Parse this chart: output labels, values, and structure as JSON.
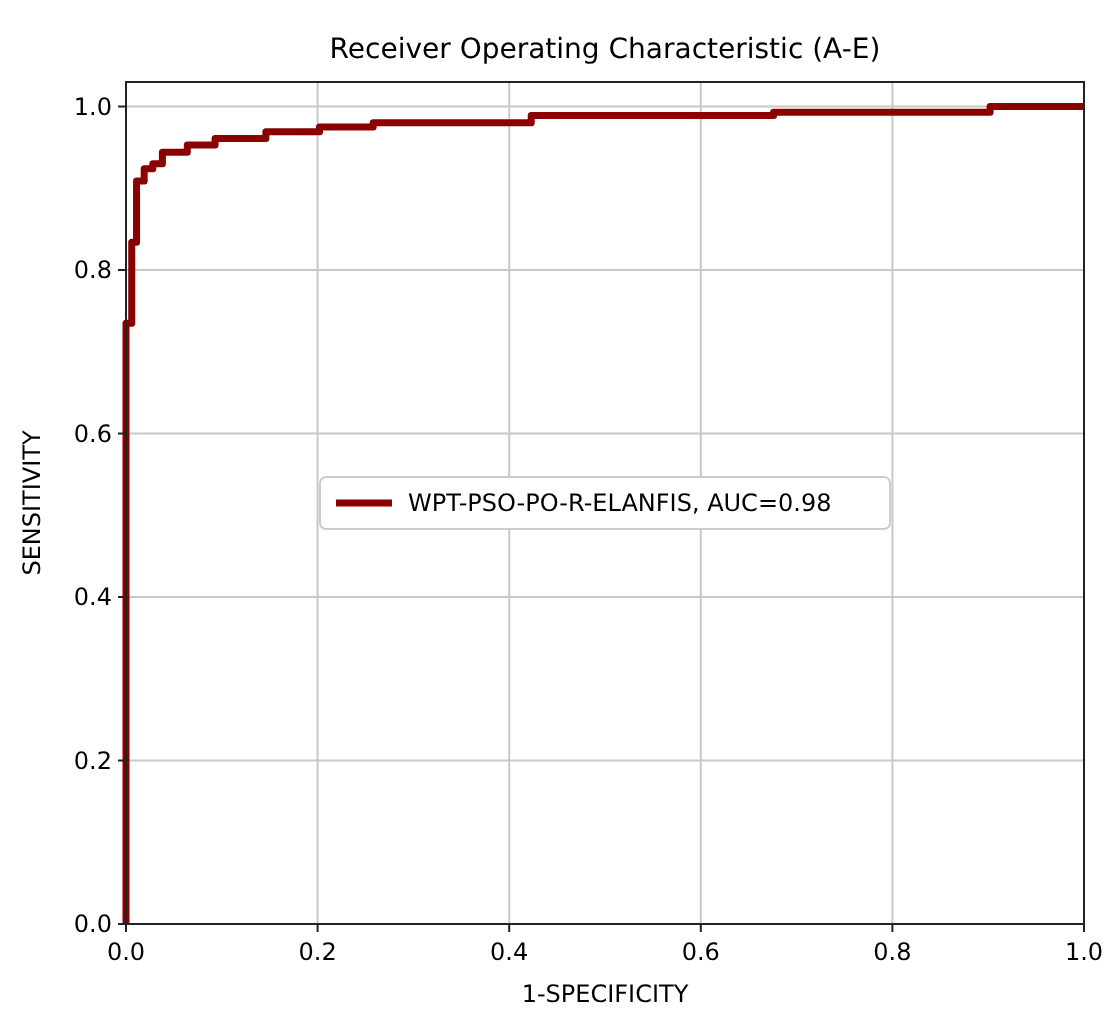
{
  "chart_data": {
    "type": "step",
    "title": "Receiver Operating Characteristic (A-E)",
    "xlabel": "1-SPECIFICITY",
    "ylabel": "SENSITIVITY",
    "xlim": [
      0,
      1
    ],
    "ylim": [
      0,
      1.03
    ],
    "xticks": [
      {
        "value": 0,
        "label": "0.0"
      },
      0.2,
      0.4,
      0.6,
      0.8,
      {
        "value": 1,
        "label": "1.0"
      }
    ],
    "yticks": [
      {
        "value": 0,
        "label": "0.0"
      },
      0.2,
      0.4,
      0.6,
      0.8,
      {
        "value": 1,
        "label": "1.0"
      }
    ],
    "grid": true,
    "legend": "center",
    "marker": "none",
    "line_style": "solid",
    "series": [
      {
        "name": "WPT-PSO-PO-R-ELANFIS, AUC=0.98",
        "color": "#8b0000",
        "x": [
          0,
          0,
          0.006,
          0.011,
          0.019,
          0.028,
          0.038,
          0.064,
          0.093,
          0.146,
          0.202,
          0.258,
          0.423,
          0.676,
          0.902,
          1
        ],
        "values": [
          0,
          0.735,
          0.834,
          0.909,
          0.924,
          0.93,
          0.944,
          0.953,
          0.961,
          0.969,
          0.975,
          0.98,
          0.989,
          0.993,
          1,
          1
        ]
      }
    ]
  }
}
